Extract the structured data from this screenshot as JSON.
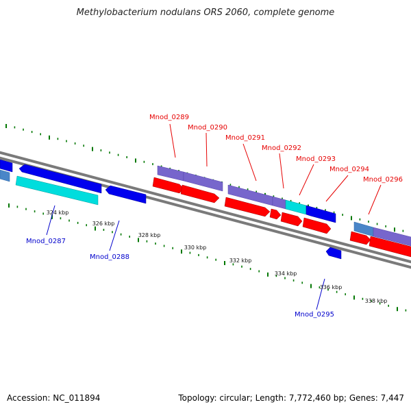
{
  "title": "Methylobacterium nodulans ORS 2060, complete genome",
  "footer": {
    "accession": "Accession: NC_011894",
    "summary": "Topology: circular; Length: 7,772,460 bp; Genes: 7,447"
  },
  "colors": {
    "forward_cds": "#ff0000",
    "reverse_cds": "#0000ee",
    "rna_feature": "#00dddd",
    "gene_feature": "#7766cc",
    "pseudo_feature": "#4a86c8",
    "backbone": "#7a7a7a",
    "gc_tick": "#007700",
    "forward_label": "#e60000",
    "reverse_label": "#0000cc"
  },
  "scale_ticks": [
    "324 kbp",
    "326 kbp",
    "328 kbp",
    "330 kbp",
    "332 kbp",
    "334 kbp",
    "336 kbp",
    "338 kbp"
  ],
  "forward_labels": [
    "Mnod_0289",
    "Mnod_0290",
    "Mnod_0291",
    "Mnod_0292",
    "Mnod_0293",
    "Mnod_0294",
    "Mnod_0296"
  ],
  "reverse_labels": [
    "Mnod_0287",
    "Mnod_0288",
    "Mnod_0295"
  ]
}
